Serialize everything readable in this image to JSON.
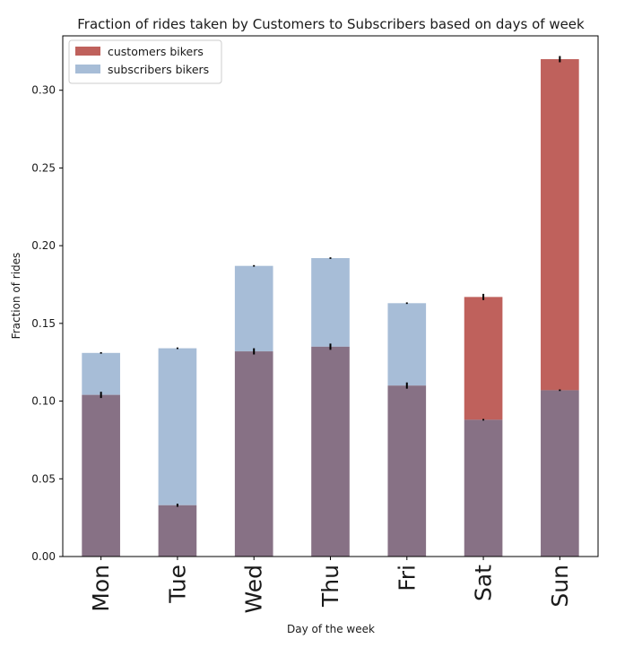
{
  "chart_data": {
    "type": "bar",
    "title": "Fraction of rides taken by Customers to Subscribers based on days of week",
    "xlabel": "Day of the week",
    "ylabel": "Fraction of rides",
    "categories": [
      "Mon",
      "Tue",
      "Wed",
      "Thu",
      "Fri",
      "Sat",
      "Sun"
    ],
    "ylim": [
      0,
      0.335
    ],
    "yticks": [
      0.0,
      0.05,
      0.1,
      0.15,
      0.2,
      0.25,
      0.3
    ],
    "ytick_labels": [
      "0.00",
      "0.05",
      "0.10",
      "0.15",
      "0.20",
      "0.25",
      "0.30"
    ],
    "grid": false,
    "legend_position": "top-left",
    "overlap_color": "#877185",
    "series": [
      {
        "name": "customers bikers",
        "color": "#bf615c",
        "values": [
          0.104,
          0.033,
          0.132,
          0.135,
          0.11,
          0.167,
          0.32
        ],
        "errors": [
          0.002,
          0.001,
          0.002,
          0.002,
          0.002,
          0.002,
          0.002
        ]
      },
      {
        "name": "subscribers bikers",
        "color": "#a7bdd7",
        "values": [
          0.131,
          0.134,
          0.187,
          0.192,
          0.163,
          0.088,
          0.107
        ],
        "errors": [
          0.0005,
          0.0005,
          0.0005,
          0.0005,
          0.0005,
          0.0005,
          0.0005
        ]
      }
    ]
  }
}
